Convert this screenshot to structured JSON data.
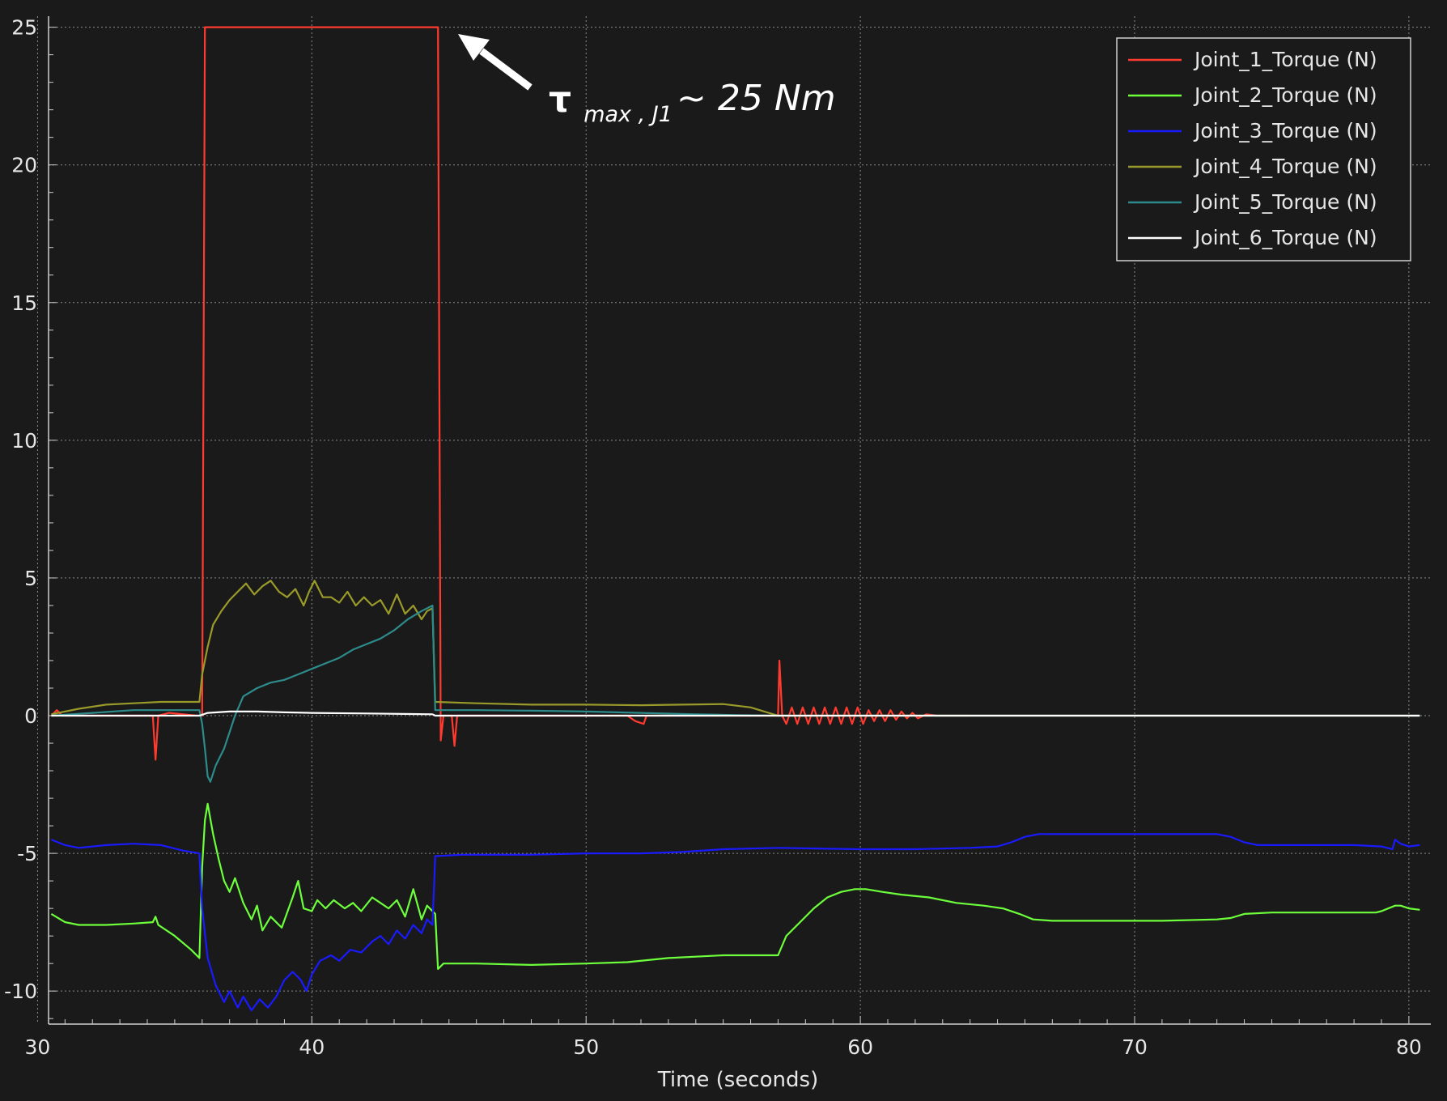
{
  "chart_data": {
    "type": "line",
    "title": "",
    "xlabel": "Time (seconds)",
    "ylabel": "",
    "xlim": [
      30.4,
      80.8
    ],
    "ylim": [
      -11.2,
      25.4
    ],
    "x_ticks": [
      30,
      40,
      50,
      60,
      70,
      80
    ],
    "y_ticks": [
      25,
      20,
      15,
      10,
      5,
      0,
      -5,
      -10
    ],
    "grid": true,
    "legend_position": "top-right",
    "annotation": {
      "tau": "τ",
      "subscript": "max , J1",
      "rest": "~ 25 Nm",
      "points_to": [
        44.4,
        25
      ]
    },
    "series": [
      {
        "name": "Joint_1_Torque (N)",
        "color": "#ff3b30",
        "points": [
          [
            30.5,
            0
          ],
          [
            30.7,
            0.2
          ],
          [
            30.9,
            0
          ],
          [
            34.2,
            0
          ],
          [
            34.3,
            -1.6
          ],
          [
            34.4,
            0
          ],
          [
            34.8,
            0.1
          ],
          [
            35.8,
            0
          ],
          [
            36.0,
            0
          ],
          [
            36.1,
            25
          ],
          [
            44.4,
            25
          ],
          [
            44.6,
            25
          ],
          [
            44.7,
            -0.9
          ],
          [
            44.8,
            0
          ],
          [
            45.1,
            0
          ],
          [
            45.2,
            -1.1
          ],
          [
            45.3,
            0
          ],
          [
            51.5,
            0
          ],
          [
            51.8,
            -0.2
          ],
          [
            52.1,
            -0.3
          ],
          [
            52.2,
            0
          ],
          [
            57.0,
            0
          ],
          [
            57.05,
            2.0
          ],
          [
            57.15,
            0
          ],
          [
            57.3,
            -0.3
          ],
          [
            57.5,
            0.3
          ],
          [
            57.7,
            -0.3
          ],
          [
            57.9,
            0.3
          ],
          [
            58.1,
            -0.3
          ],
          [
            58.3,
            0.3
          ],
          [
            58.5,
            -0.3
          ],
          [
            58.7,
            0.3
          ],
          [
            58.9,
            -0.3
          ],
          [
            59.1,
            0.3
          ],
          [
            59.3,
            -0.3
          ],
          [
            59.5,
            0.3
          ],
          [
            59.7,
            -0.3
          ],
          [
            59.9,
            0.3
          ],
          [
            60.1,
            -0.3
          ],
          [
            60.3,
            0.2
          ],
          [
            60.5,
            -0.2
          ],
          [
            60.7,
            0.2
          ],
          [
            60.9,
            -0.2
          ],
          [
            61.1,
            0.2
          ],
          [
            61.3,
            -0.15
          ],
          [
            61.5,
            0.15
          ],
          [
            61.7,
            -0.1
          ],
          [
            61.9,
            0.1
          ],
          [
            62.1,
            -0.1
          ],
          [
            62.4,
            0.05
          ],
          [
            62.8,
            0
          ],
          [
            64.0,
            0
          ]
        ]
      },
      {
        "name": "Joint_2_Torque (N)",
        "color": "#6dff3b",
        "points": [
          [
            30.5,
            -7.2
          ],
          [
            31.0,
            -7.5
          ],
          [
            31.5,
            -7.6
          ],
          [
            32.5,
            -7.6
          ],
          [
            33.5,
            -7.55
          ],
          [
            34.2,
            -7.5
          ],
          [
            34.3,
            -7.3
          ],
          [
            34.4,
            -7.6
          ],
          [
            35.0,
            -8.0
          ],
          [
            35.6,
            -8.5
          ],
          [
            35.9,
            -8.8
          ],
          [
            36.0,
            -5.5
          ],
          [
            36.1,
            -3.8
          ],
          [
            36.2,
            -3.2
          ],
          [
            36.4,
            -4.3
          ],
          [
            36.6,
            -5.2
          ],
          [
            36.8,
            -6.0
          ],
          [
            37.0,
            -6.4
          ],
          [
            37.2,
            -5.9
          ],
          [
            37.5,
            -6.8
          ],
          [
            37.8,
            -7.4
          ],
          [
            38.0,
            -6.9
          ],
          [
            38.2,
            -7.8
          ],
          [
            38.5,
            -7.3
          ],
          [
            38.9,
            -7.7
          ],
          [
            39.3,
            -6.6
          ],
          [
            39.5,
            -6.0
          ],
          [
            39.7,
            -7.0
          ],
          [
            40.0,
            -7.1
          ],
          [
            40.2,
            -6.7
          ],
          [
            40.5,
            -7.0
          ],
          [
            40.8,
            -6.7
          ],
          [
            41.2,
            -7.0
          ],
          [
            41.5,
            -6.8
          ],
          [
            41.8,
            -7.1
          ],
          [
            42.2,
            -6.6
          ],
          [
            42.5,
            -6.8
          ],
          [
            42.8,
            -7.0
          ],
          [
            43.1,
            -6.7
          ],
          [
            43.4,
            -7.3
          ],
          [
            43.7,
            -6.3
          ],
          [
            44.0,
            -7.4
          ],
          [
            44.2,
            -6.9
          ],
          [
            44.5,
            -7.2
          ],
          [
            44.6,
            -9.2
          ],
          [
            44.8,
            -9.0
          ],
          [
            46.0,
            -9.0
          ],
          [
            48.0,
            -9.05
          ],
          [
            50.0,
            -9.0
          ],
          [
            51.5,
            -8.95
          ],
          [
            53.0,
            -8.8
          ],
          [
            55.0,
            -8.7
          ],
          [
            56.0,
            -8.7
          ],
          [
            57.0,
            -8.7
          ],
          [
            57.3,
            -8.0
          ],
          [
            57.8,
            -7.5
          ],
          [
            58.3,
            -7.0
          ],
          [
            58.8,
            -6.6
          ],
          [
            59.3,
            -6.4
          ],
          [
            59.8,
            -6.3
          ],
          [
            60.2,
            -6.3
          ],
          [
            60.8,
            -6.4
          ],
          [
            61.5,
            -6.5
          ],
          [
            62.5,
            -6.6
          ],
          [
            63.5,
            -6.8
          ],
          [
            64.5,
            -6.9
          ],
          [
            65.2,
            -7.0
          ],
          [
            65.8,
            -7.2
          ],
          [
            66.3,
            -7.4
          ],
          [
            67.0,
            -7.45
          ],
          [
            69.0,
            -7.45
          ],
          [
            71.0,
            -7.45
          ],
          [
            73.0,
            -7.4
          ],
          [
            73.5,
            -7.35
          ],
          [
            74.0,
            -7.2
          ],
          [
            75.0,
            -7.15
          ],
          [
            77.0,
            -7.15
          ],
          [
            78.8,
            -7.15
          ],
          [
            79.0,
            -7.1
          ],
          [
            79.5,
            -6.9
          ],
          [
            79.7,
            -6.9
          ],
          [
            80.0,
            -7.0
          ],
          [
            80.4,
            -7.05
          ]
        ]
      },
      {
        "name": "Joint_3_Torque (N)",
        "color": "#1a1aff",
        "points": [
          [
            30.5,
            -4.5
          ],
          [
            31.0,
            -4.7
          ],
          [
            31.5,
            -4.8
          ],
          [
            32.5,
            -4.7
          ],
          [
            33.5,
            -4.65
          ],
          [
            34.5,
            -4.7
          ],
          [
            35.3,
            -4.9
          ],
          [
            35.9,
            -5.0
          ],
          [
            36.0,
            -7.0
          ],
          [
            36.2,
            -8.8
          ],
          [
            36.5,
            -9.8
          ],
          [
            36.8,
            -10.4
          ],
          [
            37.0,
            -10.0
          ],
          [
            37.3,
            -10.6
          ],
          [
            37.5,
            -10.2
          ],
          [
            37.8,
            -10.7
          ],
          [
            38.1,
            -10.3
          ],
          [
            38.4,
            -10.6
          ],
          [
            38.7,
            -10.2
          ],
          [
            39.0,
            -9.6
          ],
          [
            39.3,
            -9.3
          ],
          [
            39.6,
            -9.6
          ],
          [
            39.8,
            -10.0
          ],
          [
            40.0,
            -9.4
          ],
          [
            40.3,
            -8.9
          ],
          [
            40.7,
            -8.7
          ],
          [
            41.0,
            -8.9
          ],
          [
            41.4,
            -8.5
          ],
          [
            41.8,
            -8.6
          ],
          [
            42.2,
            -8.2
          ],
          [
            42.5,
            -8.0
          ],
          [
            42.8,
            -8.3
          ],
          [
            43.1,
            -7.8
          ],
          [
            43.4,
            -8.1
          ],
          [
            43.7,
            -7.6
          ],
          [
            44.0,
            -7.9
          ],
          [
            44.2,
            -7.4
          ],
          [
            44.4,
            -7.6
          ],
          [
            44.5,
            -5.1
          ],
          [
            45.5,
            -5.05
          ],
          [
            48.0,
            -5.05
          ],
          [
            50.0,
            -5.0
          ],
          [
            52.0,
            -5.0
          ],
          [
            53.5,
            -4.95
          ],
          [
            55.0,
            -4.85
          ],
          [
            57.0,
            -4.8
          ],
          [
            60.0,
            -4.85
          ],
          [
            62.0,
            -4.85
          ],
          [
            64.0,
            -4.8
          ],
          [
            65.0,
            -4.75
          ],
          [
            65.5,
            -4.6
          ],
          [
            66.0,
            -4.4
          ],
          [
            66.5,
            -4.3
          ],
          [
            69.0,
            -4.3
          ],
          [
            72.0,
            -4.3
          ],
          [
            73.0,
            -4.3
          ],
          [
            73.5,
            -4.4
          ],
          [
            74.0,
            -4.6
          ],
          [
            74.5,
            -4.7
          ],
          [
            76.0,
            -4.7
          ],
          [
            78.0,
            -4.7
          ],
          [
            79.0,
            -4.75
          ],
          [
            79.4,
            -4.85
          ],
          [
            79.5,
            -4.5
          ],
          [
            79.7,
            -4.65
          ],
          [
            80.0,
            -4.75
          ],
          [
            80.4,
            -4.7
          ]
        ]
      },
      {
        "name": "Joint_4_Torque (N)",
        "color": "#9a9a2a",
        "points": [
          [
            30.5,
            0.05
          ],
          [
            31.5,
            0.25
          ],
          [
            32.5,
            0.4
          ],
          [
            33.5,
            0.45
          ],
          [
            34.5,
            0.5
          ],
          [
            35.5,
            0.5
          ],
          [
            35.9,
            0.5
          ],
          [
            36.0,
            1.5
          ],
          [
            36.2,
            2.5
          ],
          [
            36.4,
            3.3
          ],
          [
            36.7,
            3.8
          ],
          [
            37.0,
            4.2
          ],
          [
            37.3,
            4.5
          ],
          [
            37.6,
            4.8
          ],
          [
            37.9,
            4.4
          ],
          [
            38.2,
            4.7
          ],
          [
            38.5,
            4.9
          ],
          [
            38.8,
            4.5
          ],
          [
            39.1,
            4.3
          ],
          [
            39.4,
            4.6
          ],
          [
            39.7,
            4.0
          ],
          [
            39.9,
            4.5
          ],
          [
            40.1,
            4.9
          ],
          [
            40.4,
            4.3
          ],
          [
            40.7,
            4.3
          ],
          [
            41.0,
            4.1
          ],
          [
            41.3,
            4.5
          ],
          [
            41.6,
            4.0
          ],
          [
            41.9,
            4.3
          ],
          [
            42.2,
            4.0
          ],
          [
            42.5,
            4.2
          ],
          [
            42.8,
            3.7
          ],
          [
            43.1,
            4.4
          ],
          [
            43.4,
            3.7
          ],
          [
            43.7,
            4.0
          ],
          [
            44.0,
            3.5
          ],
          [
            44.2,
            3.8
          ],
          [
            44.4,
            3.9
          ],
          [
            44.5,
            0.5
          ],
          [
            46.0,
            0.45
          ],
          [
            48.0,
            0.4
          ],
          [
            50.0,
            0.4
          ],
          [
            52.0,
            0.38
          ],
          [
            53.5,
            0.4
          ],
          [
            55.0,
            0.42
          ],
          [
            56.0,
            0.3
          ],
          [
            56.5,
            0.15
          ],
          [
            57.0,
            0.0
          ],
          [
            57.5,
            0.0
          ],
          [
            80.4,
            0.0
          ]
        ]
      },
      {
        "name": "Joint_5_Torque (N)",
        "color": "#2e8b8b",
        "points": [
          [
            30.5,
            0.0
          ],
          [
            32.0,
            0.1
          ],
          [
            33.5,
            0.2
          ],
          [
            35.0,
            0.2
          ],
          [
            35.9,
            0.2
          ],
          [
            36.0,
            -0.3
          ],
          [
            36.1,
            -1.2
          ],
          [
            36.2,
            -2.2
          ],
          [
            36.3,
            -2.4
          ],
          [
            36.5,
            -1.8
          ],
          [
            36.8,
            -1.2
          ],
          [
            37.0,
            -0.6
          ],
          [
            37.2,
            0.0
          ],
          [
            37.5,
            0.7
          ],
          [
            38.0,
            1.0
          ],
          [
            38.5,
            1.2
          ],
          [
            39.0,
            1.3
          ],
          [
            39.5,
            1.5
          ],
          [
            40.0,
            1.7
          ],
          [
            40.5,
            1.9
          ],
          [
            41.0,
            2.1
          ],
          [
            41.5,
            2.4
          ],
          [
            42.0,
            2.6
          ],
          [
            42.5,
            2.8
          ],
          [
            43.0,
            3.1
          ],
          [
            43.5,
            3.5
          ],
          [
            44.0,
            3.8
          ],
          [
            44.4,
            4.0
          ],
          [
            44.5,
            0.2
          ],
          [
            46.0,
            0.2
          ],
          [
            48.0,
            0.18
          ],
          [
            50.0,
            0.15
          ],
          [
            52.0,
            0.1
          ],
          [
            54.0,
            0.05
          ],
          [
            55.5,
            0.02
          ],
          [
            57.0,
            0.0
          ],
          [
            80.4,
            0.0
          ]
        ]
      },
      {
        "name": "Joint_6_Torque (N)",
        "color": "#ffffff",
        "points": [
          [
            30.5,
            0.0
          ],
          [
            35.9,
            0.0
          ],
          [
            36.2,
            0.1
          ],
          [
            37.0,
            0.15
          ],
          [
            38.0,
            0.15
          ],
          [
            39.0,
            0.12
          ],
          [
            40.0,
            0.1
          ],
          [
            42.0,
            0.08
          ],
          [
            44.4,
            0.05
          ],
          [
            44.5,
            0.0
          ],
          [
            80.4,
            0.0
          ]
        ]
      }
    ]
  }
}
